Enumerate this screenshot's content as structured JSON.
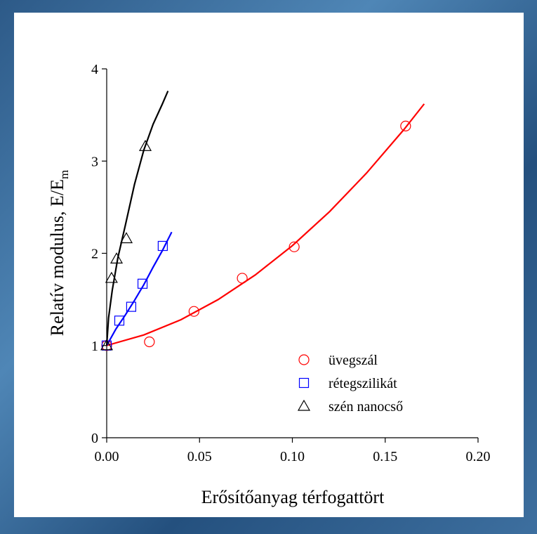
{
  "chart_data": {
    "type": "scatter",
    "xlabel": "Erősítőanyag térfogattört",
    "ylabel": "Relatív modulus, E/E",
    "ylabel_subscript": "m",
    "xlim": [
      0,
      0.2
    ],
    "ylim": [
      0,
      4
    ],
    "xticks": [
      {
        "value": 0,
        "label": "0.00"
      },
      {
        "value": 0.05,
        "label": "0.05"
      },
      {
        "value": 0.1,
        "label": "0.10"
      },
      {
        "value": 0.15,
        "label": "0.15"
      },
      {
        "value": 0.2,
        "label": "0.20"
      }
    ],
    "yticks": [
      0,
      1,
      2,
      3,
      4
    ],
    "legend": "lower right",
    "series": [
      {
        "name": "üvegszál",
        "color": "#ff0000",
        "marker": "circle",
        "x": [
          0,
          0.023,
          0.047,
          0.073,
          0.101,
          0.161
        ],
        "values": [
          1,
          1.04,
          1.37,
          1.73,
          2.07,
          3.38
        ],
        "fit": {
          "x": [
            0,
            0.02,
            0.04,
            0.06,
            0.08,
            0.1,
            0.12,
            0.14,
            0.16,
            0.171
          ],
          "values": [
            1,
            1.115,
            1.28,
            1.498,
            1.765,
            2.083,
            2.451,
            2.871,
            3.34,
            3.62
          ]
        }
      },
      {
        "name": "rétegszilikát",
        "color": "#0000ff",
        "marker": "square",
        "x": [
          0,
          0.0068,
          0.0132,
          0.0193,
          0.0302
        ],
        "values": [
          1,
          1.27,
          1.42,
          1.67,
          2.08
        ],
        "fit": {
          "x": [
            0,
            0.005,
            0.01,
            0.015,
            0.02,
            0.025,
            0.03,
            0.035
          ],
          "values": [
            1,
            1.18,
            1.33,
            1.49,
            1.66,
            1.85,
            2.03,
            2.23
          ]
        }
      },
      {
        "name": "szén nanocső",
        "color": "#000000",
        "marker": "triangle",
        "x": [
          0,
          0.0026,
          0.0053,
          0.0106,
          0.0208
        ],
        "values": [
          1,
          1.73,
          1.94,
          2.16,
          3.16
        ],
        "fit": {
          "x": [
            0,
            0.001,
            0.003,
            0.006,
            0.01,
            0.015,
            0.02,
            0.025,
            0.03,
            0.033
          ],
          "values": [
            1,
            1.3,
            1.6,
            1.95,
            2.3,
            2.75,
            3.12,
            3.4,
            3.62,
            3.76
          ]
        }
      }
    ]
  }
}
